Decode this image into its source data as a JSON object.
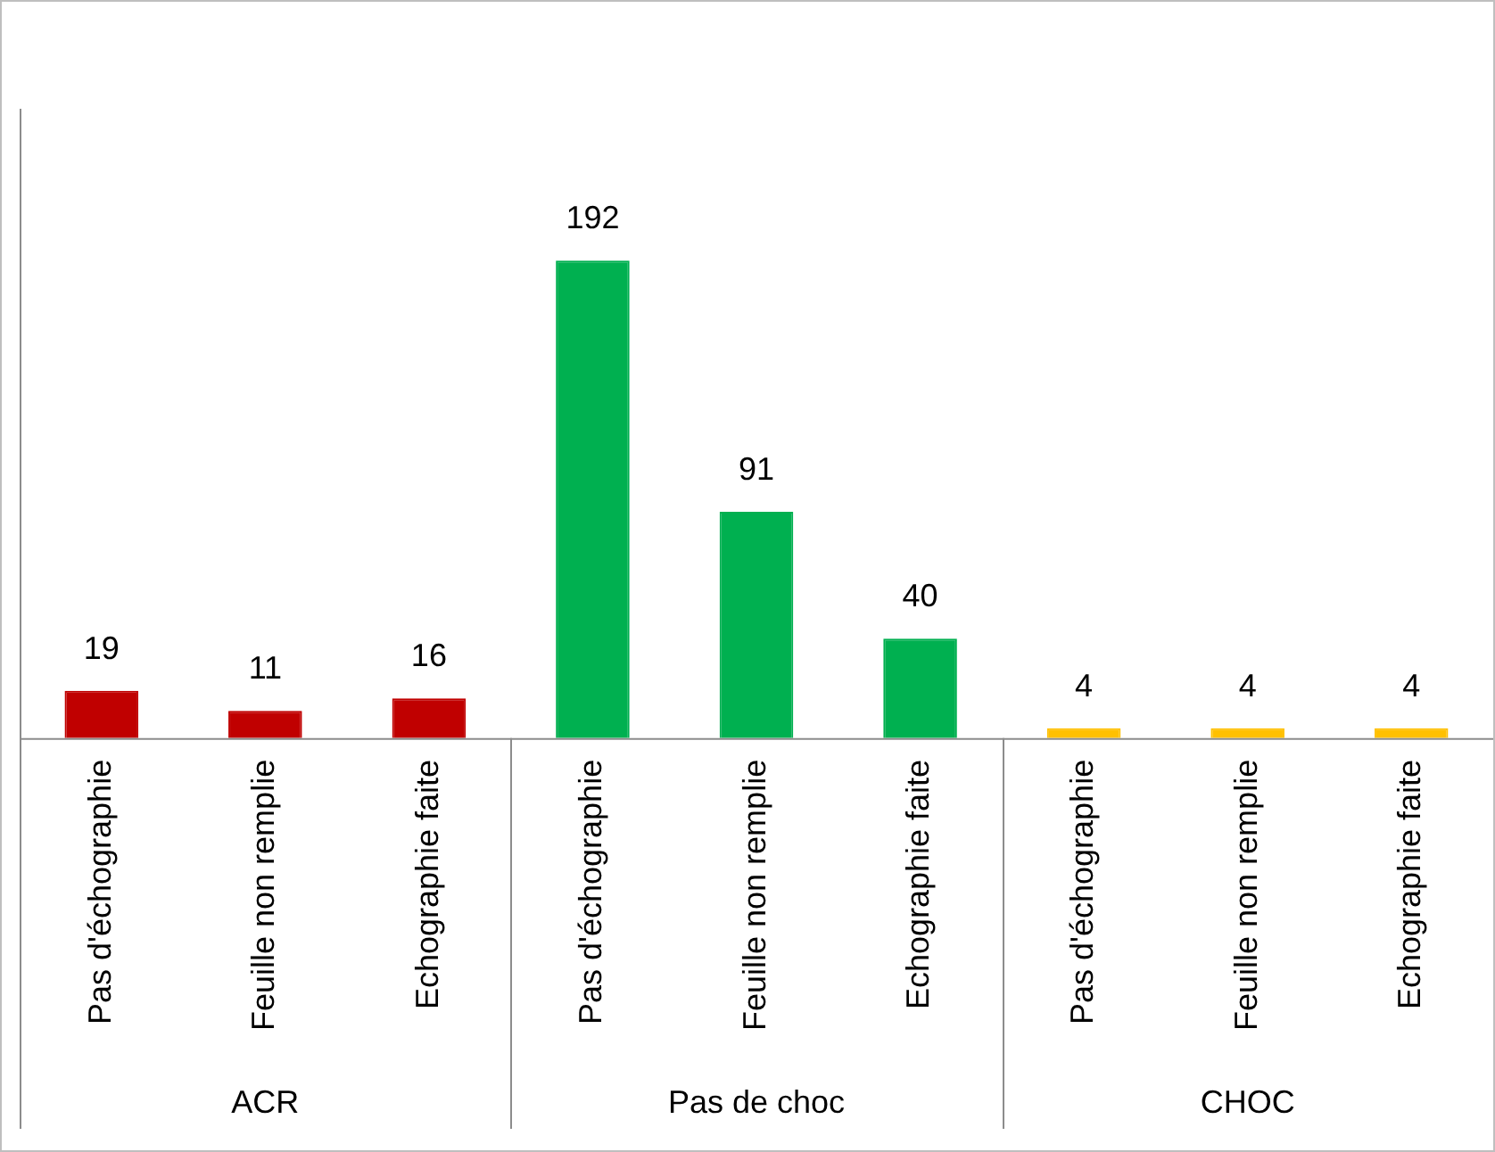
{
  "chart_data": {
    "type": "bar",
    "categories": [
      "Pas d'échographie",
      "Feuille non remplie",
      "Echographie faite",
      "Pas d'échographie",
      "Feuille non remplie",
      "Echographie faite",
      "Pas d'échographie",
      "Feuille non remplie",
      "Echographie faite"
    ],
    "values": [
      19,
      11,
      16,
      192,
      91,
      40,
      4,
      4,
      4
    ],
    "colors": [
      "#c00000",
      "#c00000",
      "#c00000",
      "#00b050",
      "#00b050",
      "#00b050",
      "#ffc000",
      "#ffc000",
      "#ffc000"
    ],
    "ylim": [
      0,
      253
    ],
    "data_labels": true,
    "grid": false,
    "legend": false,
    "tick_labels": "x",
    "annotations": [
      "ACR",
      "Pas de choc",
      "CHOC"
    ]
  }
}
